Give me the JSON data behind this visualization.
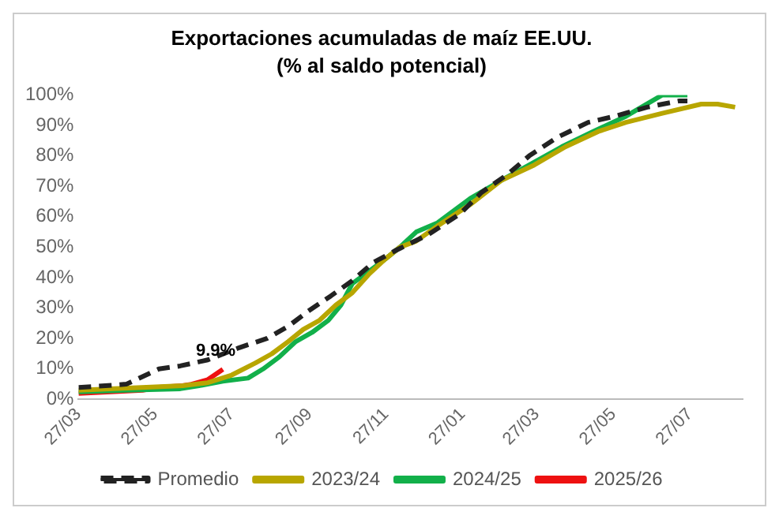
{
  "chart_data": {
    "type": "line",
    "title": "Exportaciones acumuladas de maíz EE.UU.",
    "subtitle": "(% al saldo potencial)",
    "xlim": [
      "2025-03-27",
      "2026-09-07"
    ],
    "xticks": [
      {
        "value": "2025-03-27",
        "label": "27/03"
      },
      {
        "value": "2025-05-27",
        "label": "27/05"
      },
      {
        "value": "2025-07-27",
        "label": "27/07"
      },
      {
        "value": "2025-09-27",
        "label": "27/09"
      },
      {
        "value": "2025-11-27",
        "label": "27/11"
      },
      {
        "value": "2026-01-27",
        "label": "27/01"
      },
      {
        "value": "2026-03-27",
        "label": "27/03"
      },
      {
        "value": "2026-05-27",
        "label": "27/05"
      },
      {
        "value": "2026-07-27",
        "label": "27/07"
      }
    ],
    "ylim": [
      0,
      100
    ],
    "yticks": [
      {
        "value": 0,
        "label": "0%"
      },
      {
        "value": 10,
        "label": "10%"
      },
      {
        "value": 20,
        "label": "20%"
      },
      {
        "value": 30,
        "label": "30%"
      },
      {
        "value": 40,
        "label": "40%"
      },
      {
        "value": 50,
        "label": "50%"
      },
      {
        "value": 60,
        "label": "60%"
      },
      {
        "value": 70,
        "label": "70%"
      },
      {
        "value": 80,
        "label": "80%"
      },
      {
        "value": 90,
        "label": "90%"
      },
      {
        "value": 100,
        "label": "100%"
      }
    ],
    "grid": false,
    "legend": "bottom",
    "marker": "none",
    "series": [
      {
        "name": "Promedio",
        "color": "#222222",
        "line_style": "dashed",
        "x": [
          "2025-03-27",
          "2025-05-04",
          "2025-05-30",
          "2025-06-16",
          "2025-07-08",
          "2025-08-02",
          "2025-08-24",
          "2025-09-10",
          "2025-09-26",
          "2025-10-14",
          "2025-10-31",
          "2025-11-17",
          "2025-12-05",
          "2025-12-30",
          "2026-01-25",
          "2026-02-11",
          "2026-03-04",
          "2026-03-21",
          "2026-04-12",
          "2026-05-07",
          "2026-05-28",
          "2026-06-23",
          "2026-07-18",
          "2026-07-25"
        ],
        "values": [
          3.9,
          5,
          10,
          11,
          13,
          17,
          20,
          24,
          29,
          34,
          39,
          45,
          49,
          54,
          61,
          68,
          74,
          80,
          86,
          91,
          93,
          96,
          98,
          98
        ]
      },
      {
        "name": "2023/24",
        "color": "#b8a600",
        "line_style": "solid",
        "x": [
          "2025-03-27",
          "2025-06-18",
          "2025-07-08",
          "2025-07-27",
          "2025-08-15",
          "2025-08-28",
          "2025-09-10",
          "2025-09-22",
          "2025-10-05",
          "2025-10-18",
          "2025-10-31",
          "2025-11-13",
          "2025-11-26",
          "2025-12-08",
          "2025-12-21",
          "2026-01-07",
          "2026-02-02",
          "2026-02-27",
          "2026-03-25",
          "2026-04-19",
          "2026-05-15",
          "2026-06-06",
          "2026-07-05",
          "2026-08-05",
          "2026-08-18",
          "2026-09-01"
        ],
        "values": [
          3,
          4.5,
          5.5,
          8,
          12,
          15,
          19,
          23,
          26,
          31,
          35,
          41,
          46,
          50,
          52,
          57,
          64,
          72,
          77,
          83,
          88,
          91,
          94,
          97,
          97,
          96
        ]
      },
      {
        "name": "2024/25",
        "color": "#12b04a",
        "line_style": "solid",
        "x": [
          "2025-03-27",
          "2025-05-04",
          "2025-06-16",
          "2025-07-01",
          "2025-07-20",
          "2025-08-09",
          "2025-08-21",
          "2025-09-03",
          "2025-09-16",
          "2025-09-29",
          "2025-10-12",
          "2025-10-22",
          "2025-10-31",
          "2025-11-13",
          "2025-11-26",
          "2025-12-08",
          "2025-12-21",
          "2026-01-07",
          "2026-02-02",
          "2026-02-27",
          "2026-03-21",
          "2026-04-16",
          "2026-05-11",
          "2026-06-06",
          "2026-07-05",
          "2026-07-25"
        ],
        "values": [
          2.5,
          3,
          3.5,
          4.5,
          6,
          7,
          10,
          14,
          19,
          22,
          26,
          31,
          38,
          42,
          46,
          50,
          55,
          58,
          66,
          72,
          77,
          83,
          88,
          93,
          100,
          100
        ]
      },
      {
        "name": "2025/26",
        "color": "#ee1111",
        "line_style": "solid",
        "x": [
          "2025-03-27",
          "2025-04-22",
          "2025-05-17",
          "2025-05-30",
          "2025-06-18",
          "2025-06-25",
          "2025-07-08",
          "2025-07-20"
        ],
        "values": [
          2,
          2.5,
          3,
          4,
          4.5,
          5,
          6.5,
          9.9
        ]
      }
    ],
    "annotations": [
      {
        "text": "9.9%",
        "x": "2025-07-20",
        "y": 9.9
      }
    ]
  }
}
